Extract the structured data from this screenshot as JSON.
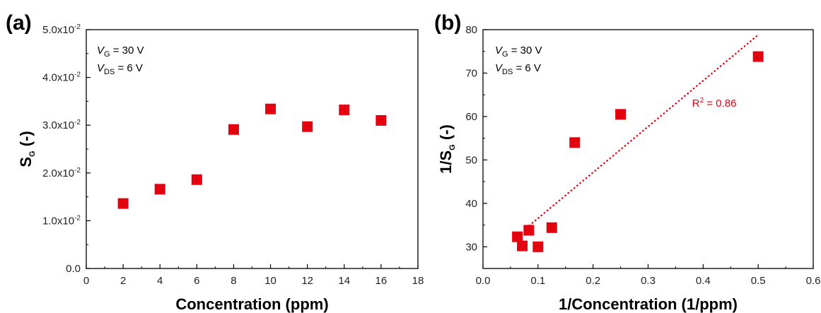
{
  "chart_data": [
    {
      "type": "scatter",
      "panel_label": "(a)",
      "xlabel": "Concentration (ppm)",
      "ylabel": {
        "main": "S",
        "sub": "G",
        "suffix": " (-)"
      },
      "xlim": [
        0,
        18
      ],
      "ylim": [
        0,
        0.05
      ],
      "xticks": [
        "0",
        "2",
        "4",
        "6",
        "8",
        "10",
        "12",
        "14",
        "16",
        "18"
      ],
      "yticks": [
        "0.0",
        "1.0x10-2",
        "2.0x10-2",
        "3.0x10-2",
        "4.0x10-2",
        "5.0x10-2"
      ],
      "annotations": [
        {
          "var": "V",
          "sub": "G",
          "rest": " = 30 V"
        },
        {
          "var": "V",
          "sub": "DS",
          "rest": " = 6 V"
        }
      ],
      "series": [
        {
          "marker": "square",
          "color": "#e3000f",
          "x": [
            2,
            4,
            6,
            8,
            10,
            12,
            14,
            16
          ],
          "y": [
            0.0136,
            0.0166,
            0.0186,
            0.0291,
            0.0334,
            0.0297,
            0.0332,
            0.031
          ]
        }
      ],
      "grid": false
    },
    {
      "type": "scatter",
      "panel_label": "(b)",
      "xlabel": "1/Concentration (1/ppm)",
      "ylabel": {
        "main": "1/S",
        "sub": "G",
        "suffix": " (-)"
      },
      "xlim": [
        0,
        0.6
      ],
      "ylim": [
        25,
        80
      ],
      "xticks": [
        "0.0",
        "0.1",
        "0.2",
        "0.3",
        "0.4",
        "0.5",
        "0.6"
      ],
      "yticks": [
        "30",
        "40",
        "50",
        "60",
        "70",
        "80"
      ],
      "annotations": [
        {
          "var": "V",
          "sub": "G",
          "rest": " = 30 V"
        },
        {
          "var": "V",
          "sub": "DS",
          "rest": " = 6 V"
        }
      ],
      "series": [
        {
          "marker": "square",
          "color": "#e3000f",
          "x": [
            0.0625,
            0.0714,
            0.0833,
            0.1,
            0.125,
            0.1667,
            0.25,
            0.5
          ],
          "y": [
            32.3,
            30.2,
            33.8,
            30.0,
            34.4,
            54.0,
            60.5,
            73.8
          ]
        }
      ],
      "fit_line": {
        "style": "dotted",
        "color": "#e3000f",
        "x": [
          0.0833,
          0.5
        ],
        "y": [
          34.8,
          78.8
        ],
        "label": "R2 = 0.86"
      },
      "grid": false
    }
  ]
}
